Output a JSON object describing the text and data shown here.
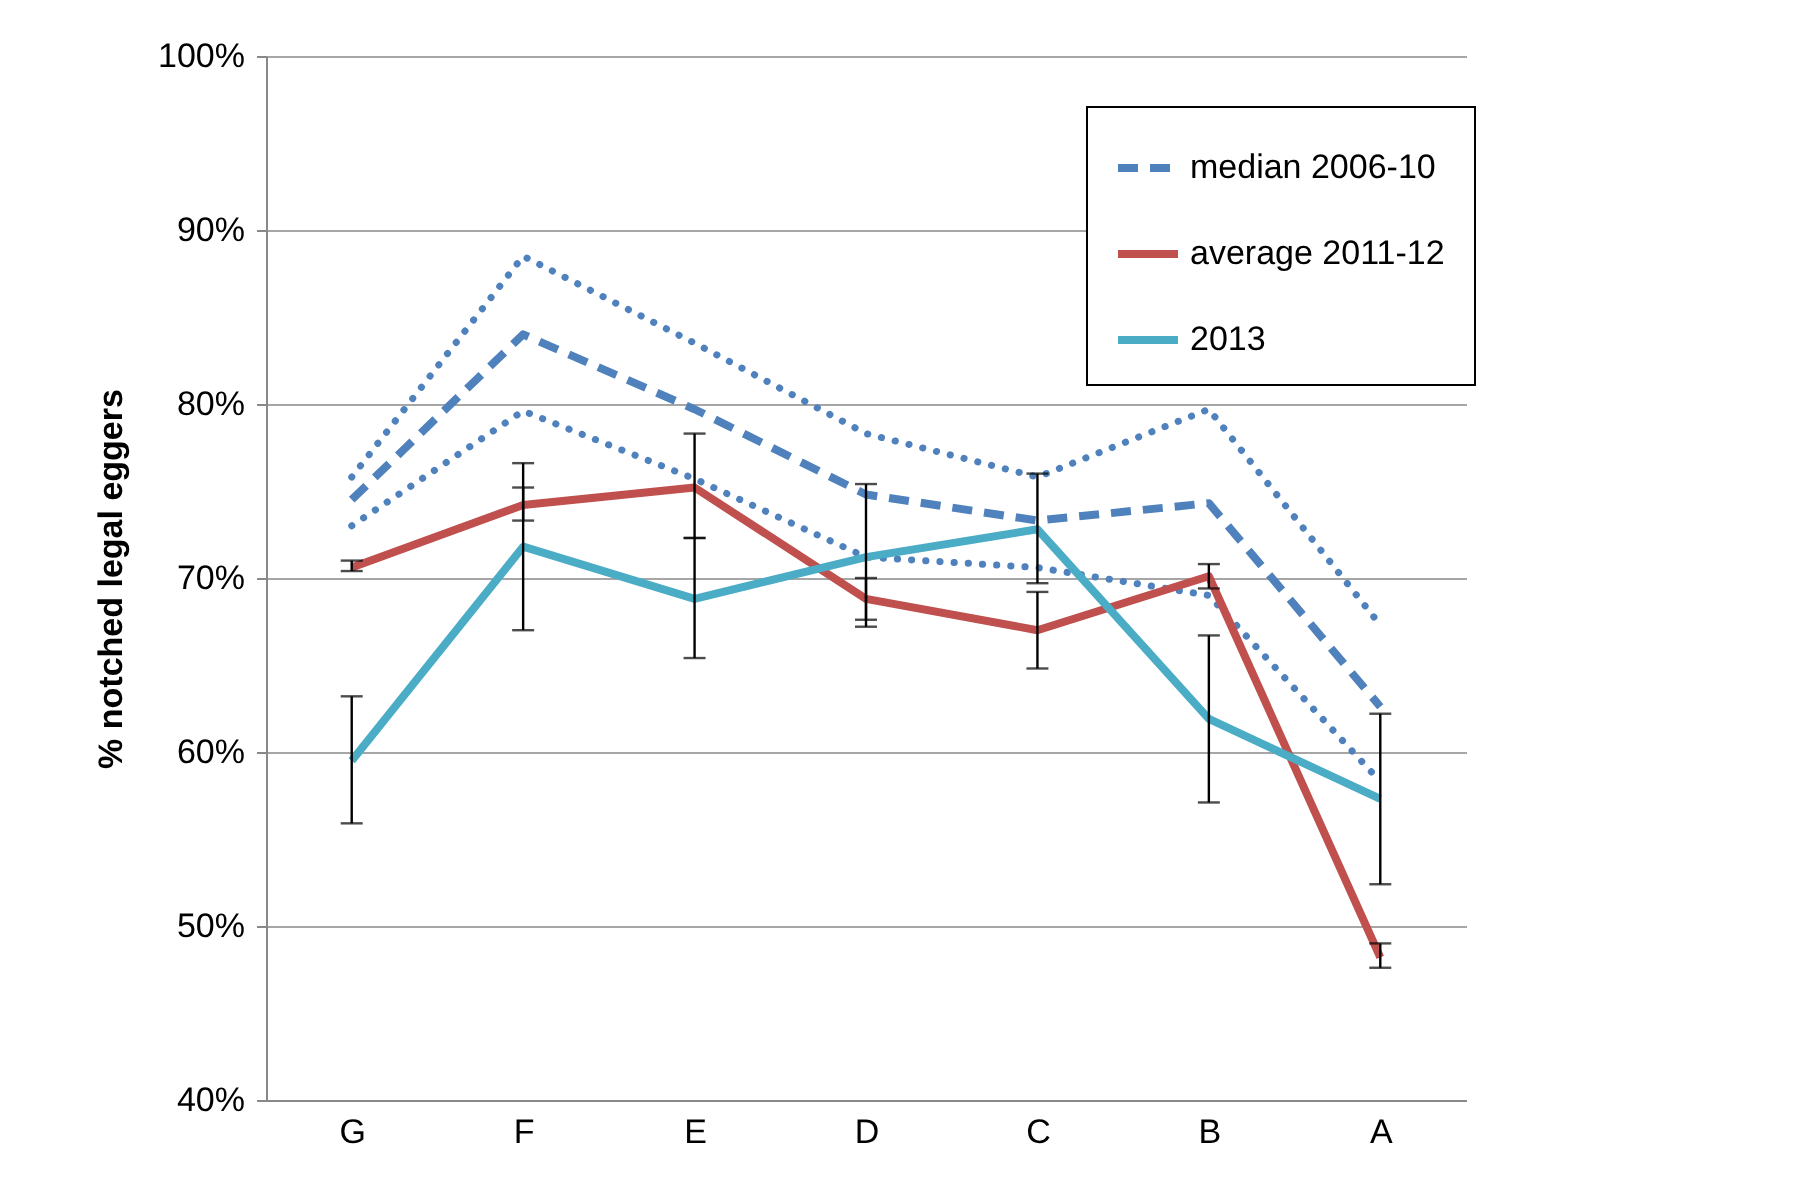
{
  "chart_data": {
    "type": "line",
    "ylabel": "% notched legal eggers",
    "categories": [
      "G",
      "F",
      "E",
      "D",
      "C",
      "B",
      "A"
    ],
    "ylim": [
      40,
      100
    ],
    "yticks": [
      {
        "value": 40,
        "label": "40%"
      },
      {
        "value": 50,
        "label": "50%"
      },
      {
        "value": 60,
        "label": "60%"
      },
      {
        "value": 70,
        "label": "70%"
      },
      {
        "value": 80,
        "label": "80%"
      },
      {
        "value": 90,
        "label": "90%"
      },
      {
        "value": 100,
        "label": "100%"
      }
    ],
    "grid": "y",
    "legend": "top right",
    "series": [
      {
        "color": "#4f81bd",
        "line_style": "dotted",
        "values": [
          75.8,
          88.5,
          83.5,
          78.3,
          75.8,
          79.7,
          67.3
        ]
      },
      {
        "color": "#4f81bd",
        "line_style": "dotted",
        "values": [
          73.0,
          79.6,
          75.7,
          71.2,
          70.6,
          69.0,
          58.3
        ]
      },
      {
        "name": "median 2006-10",
        "color": "#4f81bd",
        "line_style": "dashed",
        "values": [
          74.5,
          84.0,
          79.7,
          74.8,
          73.3,
          74.3,
          62.6
        ]
      },
      {
        "name": "average 2011-12",
        "color": "#c0504d",
        "line_style": "solid",
        "values": [
          70.6,
          74.2,
          75.2,
          68.8,
          67.0,
          70.1,
          48.2
        ],
        "errors": [
          [
            70.4,
            71.0
          ],
          [
            73.3,
            75.2
          ],
          [
            72.3,
            78.3
          ],
          [
            67.6,
            70.0
          ],
          [
            64.8,
            69.2
          ],
          [
            69.4,
            70.8
          ],
          [
            47.6,
            49.0
          ]
        ]
      },
      {
        "name": "2013",
        "color": "#4bacc6",
        "line_style": "solid",
        "values": [
          59.5,
          71.8,
          68.8,
          71.2,
          72.8,
          61.9,
          57.3
        ],
        "errors": [
          [
            55.9,
            63.2
          ],
          [
            67.0,
            76.6
          ],
          [
            65.4,
            72.3
          ],
          [
            67.2,
            75.4
          ],
          [
            69.7,
            76.0
          ],
          [
            57.1,
            66.7
          ],
          [
            52.4,
            62.2
          ]
        ]
      }
    ]
  }
}
